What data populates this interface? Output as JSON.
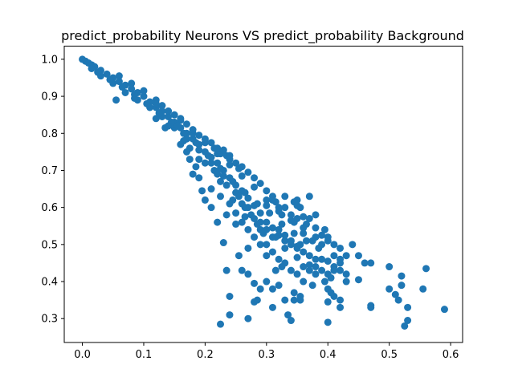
{
  "chart_data": {
    "type": "scatter",
    "title": "predict_probability Neurons VS predict_probability Background",
    "xlabel": "",
    "ylabel": "",
    "xlim": [
      -0.0295,
      0.6195
    ],
    "ylim": [
      0.2355,
      1.0355
    ],
    "x_ticks": [
      "0.0",
      "0.1",
      "0.2",
      "0.3",
      "0.4",
      "0.5",
      "0.6"
    ],
    "y_ticks": [
      "0.3",
      "0.4",
      "0.5",
      "0.6",
      "0.7",
      "0.8",
      "0.9",
      "1.0"
    ],
    "grid": false,
    "legend": "none",
    "series": [
      {
        "color": "#1f77b4",
        "points": [
          [
            0.0,
            1.0
          ],
          [
            0.005,
            0.995
          ],
          [
            0.01,
            0.99
          ],
          [
            0.015,
            0.985
          ],
          [
            0.02,
            0.98
          ],
          [
            0.03,
            0.97
          ],
          [
            0.04,
            0.96
          ],
          [
            0.05,
            0.95
          ],
          [
            0.06,
            0.94
          ],
          [
            0.07,
            0.93
          ],
          [
            0.08,
            0.92
          ],
          [
            0.09,
            0.91
          ],
          [
            0.1,
            0.9
          ],
          [
            0.11,
            0.885
          ],
          [
            0.12,
            0.87
          ],
          [
            0.13,
            0.86
          ],
          [
            0.14,
            0.845
          ],
          [
            0.15,
            0.83
          ],
          [
            0.16,
            0.815
          ],
          [
            0.17,
            0.8
          ],
          [
            0.18,
            0.785
          ],
          [
            0.19,
            0.77
          ],
          [
            0.2,
            0.75
          ],
          [
            0.21,
            0.735
          ],
          [
            0.22,
            0.72
          ],
          [
            0.23,
            0.7
          ],
          [
            0.24,
            0.68
          ],
          [
            0.25,
            0.66
          ],
          [
            0.26,
            0.645
          ],
          [
            0.27,
            0.625
          ],
          [
            0.28,
            0.605
          ],
          [
            0.29,
            0.585
          ],
          [
            0.3,
            0.56
          ],
          [
            0.31,
            0.545
          ],
          [
            0.32,
            0.525
          ],
          [
            0.33,
            0.51
          ],
          [
            0.34,
            0.5
          ],
          [
            0.35,
            0.49
          ],
          [
            0.36,
            0.48
          ],
          [
            0.37,
            0.47
          ],
          [
            0.38,
            0.46
          ],
          [
            0.4,
            0.455
          ],
          [
            0.03,
            0.955
          ],
          [
            0.05,
            0.935
          ],
          [
            0.07,
            0.91
          ],
          [
            0.09,
            0.89
          ],
          [
            0.11,
            0.87
          ],
          [
            0.13,
            0.845
          ],
          [
            0.15,
            0.815
          ],
          [
            0.17,
            0.785
          ],
          [
            0.19,
            0.755
          ],
          [
            0.21,
            0.72
          ],
          [
            0.23,
            0.685
          ],
          [
            0.25,
            0.64
          ],
          [
            0.27,
            0.6
          ],
          [
            0.29,
            0.56
          ],
          [
            0.31,
            0.52
          ],
          [
            0.33,
            0.49
          ],
          [
            0.35,
            0.465
          ],
          [
            0.37,
            0.445
          ],
          [
            0.06,
            0.955
          ],
          [
            0.08,
            0.935
          ],
          [
            0.1,
            0.915
          ],
          [
            0.12,
            0.89
          ],
          [
            0.14,
            0.86
          ],
          [
            0.16,
            0.835
          ],
          [
            0.18,
            0.8
          ],
          [
            0.2,
            0.775
          ],
          [
            0.22,
            0.745
          ],
          [
            0.24,
            0.715
          ],
          [
            0.26,
            0.685
          ],
          [
            0.28,
            0.655
          ],
          [
            0.3,
            0.62
          ],
          [
            0.32,
            0.59
          ],
          [
            0.34,
            0.565
          ],
          [
            0.36,
            0.545
          ],
          [
            0.38,
            0.52
          ],
          [
            0.39,
            0.5
          ],
          [
            0.015,
            0.975
          ],
          [
            0.025,
            0.965
          ],
          [
            0.045,
            0.945
          ],
          [
            0.065,
            0.925
          ],
          [
            0.085,
            0.905
          ],
          [
            0.105,
            0.88
          ],
          [
            0.125,
            0.855
          ],
          [
            0.145,
            0.83
          ],
          [
            0.165,
            0.8
          ],
          [
            0.185,
            0.775
          ],
          [
            0.205,
            0.74
          ],
          [
            0.225,
            0.705
          ],
          [
            0.245,
            0.67
          ],
          [
            0.265,
            0.64
          ],
          [
            0.285,
            0.61
          ],
          [
            0.305,
            0.585
          ],
          [
            0.325,
            0.555
          ],
          [
            0.345,
            0.53
          ],
          [
            0.365,
            0.51
          ],
          [
            0.055,
            0.89
          ],
          [
            0.085,
            0.895
          ],
          [
            0.12,
            0.84
          ],
          [
            0.135,
            0.815
          ],
          [
            0.14,
            0.82
          ],
          [
            0.155,
            0.82
          ],
          [
            0.165,
            0.78
          ],
          [
            0.175,
            0.76
          ],
          [
            0.19,
            0.73
          ],
          [
            0.2,
            0.72
          ],
          [
            0.215,
            0.7
          ],
          [
            0.22,
            0.69
          ],
          [
            0.225,
            0.67
          ],
          [
            0.235,
            0.66
          ],
          [
            0.245,
            0.62
          ],
          [
            0.255,
            0.63
          ],
          [
            0.26,
            0.61
          ],
          [
            0.265,
            0.6
          ],
          [
            0.275,
            0.58
          ],
          [
            0.28,
            0.57
          ],
          [
            0.29,
            0.54
          ],
          [
            0.295,
            0.53
          ],
          [
            0.3,
            0.5
          ],
          [
            0.31,
            0.48
          ],
          [
            0.32,
            0.46
          ],
          [
            0.33,
            0.45
          ],
          [
            0.34,
            0.43
          ],
          [
            0.35,
            0.42
          ],
          [
            0.36,
            0.44
          ],
          [
            0.37,
            0.43
          ],
          [
            0.39,
            0.43
          ],
          [
            0.4,
            0.42
          ],
          [
            0.41,
            0.44
          ],
          [
            0.42,
            0.45
          ],
          [
            0.43,
            0.47
          ],
          [
            0.31,
            0.63
          ],
          [
            0.33,
            0.63
          ],
          [
            0.35,
            0.62
          ],
          [
            0.37,
            0.63
          ],
          [
            0.355,
            0.6
          ],
          [
            0.37,
            0.57
          ],
          [
            0.38,
            0.58
          ],
          [
            0.395,
            0.54
          ],
          [
            0.4,
            0.52
          ],
          [
            0.41,
            0.5
          ],
          [
            0.42,
            0.49
          ],
          [
            0.44,
            0.5
          ],
          [
            0.45,
            0.47
          ],
          [
            0.46,
            0.45
          ],
          [
            0.47,
            0.45
          ],
          [
            0.325,
            0.58
          ],
          [
            0.345,
            0.56
          ],
          [
            0.36,
            0.53
          ],
          [
            0.375,
            0.51
          ],
          [
            0.385,
            0.49
          ],
          [
            0.26,
            0.56
          ],
          [
            0.27,
            0.54
          ],
          [
            0.28,
            0.52
          ],
          [
            0.29,
            0.5
          ],
          [
            0.27,
            0.49
          ],
          [
            0.255,
            0.47
          ],
          [
            0.26,
            0.43
          ],
          [
            0.3,
            0.47
          ],
          [
            0.315,
            0.43
          ],
          [
            0.325,
            0.44
          ],
          [
            0.23,
            0.505
          ],
          [
            0.27,
            0.42
          ],
          [
            0.28,
            0.395
          ],
          [
            0.29,
            0.38
          ],
          [
            0.3,
            0.4
          ],
          [
            0.31,
            0.38
          ],
          [
            0.32,
            0.39
          ],
          [
            0.33,
            0.35
          ],
          [
            0.345,
            0.37
          ],
          [
            0.355,
            0.36
          ],
          [
            0.36,
            0.4
          ],
          [
            0.375,
            0.39
          ],
          [
            0.38,
            0.42
          ],
          [
            0.395,
            0.4
          ],
          [
            0.4,
            0.38
          ],
          [
            0.405,
            0.41
          ],
          [
            0.41,
            0.36
          ],
          [
            0.42,
            0.35
          ],
          [
            0.43,
            0.4
          ],
          [
            0.42,
            0.33
          ],
          [
            0.225,
            0.285
          ],
          [
            0.24,
            0.31
          ],
          [
            0.24,
            0.36
          ],
          [
            0.235,
            0.43
          ],
          [
            0.27,
            0.3
          ],
          [
            0.28,
            0.345
          ],
          [
            0.285,
            0.35
          ],
          [
            0.31,
            0.33
          ],
          [
            0.335,
            0.31
          ],
          [
            0.34,
            0.295
          ],
          [
            0.345,
            0.35
          ],
          [
            0.355,
            0.35
          ],
          [
            0.4,
            0.29
          ],
          [
            0.4,
            0.345
          ],
          [
            0.405,
            0.37
          ],
          [
            0.45,
            0.405
          ],
          [
            0.47,
            0.335
          ],
          [
            0.47,
            0.33
          ],
          [
            0.5,
            0.38
          ],
          [
            0.5,
            0.44
          ],
          [
            0.51,
            0.365
          ],
          [
            0.515,
            0.35
          ],
          [
            0.52,
            0.415
          ],
          [
            0.52,
            0.39
          ],
          [
            0.525,
            0.28
          ],
          [
            0.53,
            0.295
          ],
          [
            0.53,
            0.33
          ],
          [
            0.555,
            0.38
          ],
          [
            0.56,
            0.435
          ],
          [
            0.59,
            0.325
          ],
          [
            0.25,
            0.585
          ],
          [
            0.265,
            0.575
          ],
          [
            0.285,
            0.555
          ],
          [
            0.3,
            0.54
          ],
          [
            0.315,
            0.52
          ],
          [
            0.22,
            0.56
          ],
          [
            0.21,
            0.6
          ],
          [
            0.2,
            0.62
          ],
          [
            0.195,
            0.645
          ],
          [
            0.19,
            0.68
          ],
          [
            0.185,
            0.71
          ],
          [
            0.18,
            0.69
          ],
          [
            0.175,
            0.73
          ],
          [
            0.17,
            0.75
          ],
          [
            0.16,
            0.77
          ],
          [
            0.21,
            0.65
          ],
          [
            0.225,
            0.63
          ],
          [
            0.24,
            0.61
          ],
          [
            0.235,
            0.58
          ],
          [
            0.25,
            0.555
          ],
          [
            0.33,
            0.6
          ],
          [
            0.34,
            0.58
          ],
          [
            0.35,
            0.57
          ],
          [
            0.36,
            0.575
          ],
          [
            0.365,
            0.555
          ],
          [
            0.32,
            0.54
          ],
          [
            0.33,
            0.525
          ],
          [
            0.34,
            0.51
          ],
          [
            0.35,
            0.495
          ],
          [
            0.355,
            0.5
          ],
          [
            0.38,
            0.545
          ],
          [
            0.39,
            0.525
          ],
          [
            0.4,
            0.51
          ],
          [
            0.41,
            0.47
          ],
          [
            0.42,
            0.46
          ],
          [
            0.43,
            0.42
          ],
          [
            0.42,
            0.43
          ],
          [
            0.41,
            0.43
          ],
          [
            0.38,
            0.44
          ],
          [
            0.39,
            0.46
          ],
          [
            0.3,
            0.605
          ],
          [
            0.315,
            0.615
          ],
          [
            0.32,
            0.6
          ],
          [
            0.345,
            0.615
          ],
          [
            0.35,
            0.605
          ],
          [
            0.215,
            0.76
          ],
          [
            0.225,
            0.745
          ],
          [
            0.24,
            0.73
          ],
          [
            0.255,
            0.705
          ],
          [
            0.27,
            0.695
          ],
          [
            0.28,
            0.68
          ],
          [
            0.29,
            0.665
          ],
          [
            0.3,
            0.645
          ],
          [
            0.31,
            0.62
          ],
          [
            0.235,
            0.74
          ],
          [
            0.12,
            0.88
          ],
          [
            0.13,
            0.875
          ],
          [
            0.14,
            0.86
          ],
          [
            0.15,
            0.85
          ],
          [
            0.16,
            0.84
          ],
          [
            0.17,
            0.825
          ],
          [
            0.18,
            0.81
          ],
          [
            0.19,
            0.795
          ],
          [
            0.2,
            0.785
          ],
          [
            0.21,
            0.775
          ],
          [
            0.22,
            0.76
          ],
          [
            0.23,
            0.755
          ],
          [
            0.24,
            0.74
          ],
          [
            0.25,
            0.72
          ],
          [
            0.26,
            0.71
          ]
        ]
      }
    ]
  }
}
